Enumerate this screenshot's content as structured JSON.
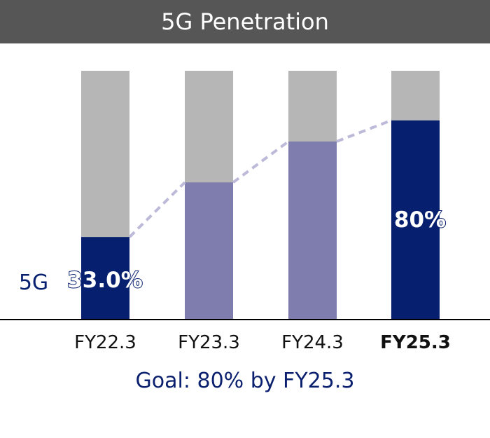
{
  "chart_data": {
    "type": "bar",
    "stacked": true,
    "title": "5G Penetration",
    "categories": [
      "FY22.3",
      "FY23.3",
      "FY24.3",
      "FY25.3"
    ],
    "values": [
      33.0,
      55,
      71.5,
      80
    ],
    "ylim": [
      0,
      100
    ],
    "data_labels": [
      "33.0%",
      "",
      "",
      "80%"
    ],
    "series_label": "5G",
    "annotation": "Goal: 80% by FY25.3",
    "grid": false,
    "trend_line": "dashed",
    "colors": {
      "actual": "#061f6e",
      "projected": "#7f7dae",
      "remainder": "#b5b6b5",
      "trend": "#bcbad8",
      "header": "#575656"
    }
  }
}
